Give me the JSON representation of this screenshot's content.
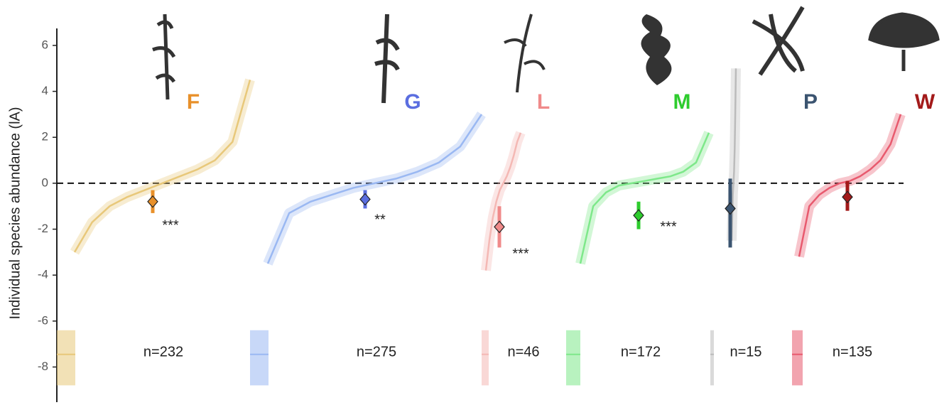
{
  "chart_data": {
    "type": "ranked-abundance",
    "y_label": "Individual species abundance (lA)",
    "ylim": [
      -9.5,
      6.74
    ],
    "yticks": [
      -8,
      -6,
      -4,
      -2,
      0,
      2,
      4,
      6
    ],
    "hline": 0,
    "groups": [
      {
        "name": "F",
        "color": "#e8902a",
        "curve_color": "#e8c87a",
        "n_label": "n=232",
        "mean": -0.8,
        "ci": [
          -1.3,
          -0.3
        ],
        "stars": "***",
        "curve": [
          -3.0,
          -1.7,
          -1.0,
          -0.6,
          -0.3,
          0,
          0.3,
          0.6,
          1.0,
          1.8,
          4.5
        ]
      },
      {
        "name": "G",
        "color": "#5b6ee0",
        "curve_color": "#9ab8f2",
        "n_label": "n=275",
        "mean": -0.7,
        "ci": [
          -1.1,
          -0.3
        ],
        "stars": "**",
        "curve": [
          -3.5,
          -1.3,
          -0.8,
          -0.5,
          -0.2,
          0,
          0.2,
          0.5,
          0.9,
          1.6,
          3.0
        ]
      },
      {
        "name": "L",
        "color": "#f08a8a",
        "curve_color": "#f4b8b4",
        "n_label": "n=46",
        "mean": -1.9,
        "ci": [
          -2.8,
          -1.0
        ],
        "stars": "***",
        "curve": [
          -3.8,
          -2.5,
          -1.5,
          -0.8,
          -0.3,
          0,
          0.3,
          0.7,
          1.2,
          1.8,
          2.2
        ]
      },
      {
        "name": "M",
        "color": "#2ecc2e",
        "curve_color": "#7ee88a",
        "n_label": "n=172",
        "mean": -1.4,
        "ci": [
          -2.0,
          -0.8
        ],
        "stars": "***",
        "curve": [
          -3.5,
          -1.0,
          -0.4,
          -0.1,
          0,
          0.1,
          0.2,
          0.3,
          0.5,
          0.9,
          2.2
        ]
      },
      {
        "name": "P",
        "color": "#3b5470",
        "curve_color": "#bbbbbb",
        "n_label": "n=15",
        "mean": -1.1,
        "ci": [
          -2.8,
          0.2
        ],
        "curve": [
          -2.5,
          -1.5,
          -0.5,
          0,
          0.5,
          1.5,
          3.0,
          5.0
        ]
      },
      {
        "name": "W",
        "color": "#a31a1a",
        "curve_color": "#e85a6e",
        "n_label": "n=135",
        "mean": -0.6,
        "ci": [
          -1.2,
          0.1
        ],
        "curve": [
          -3.2,
          -1.0,
          -0.5,
          -0.2,
          0,
          0.1,
          0.3,
          0.6,
          1.0,
          1.7,
          3.0
        ]
      }
    ]
  }
}
